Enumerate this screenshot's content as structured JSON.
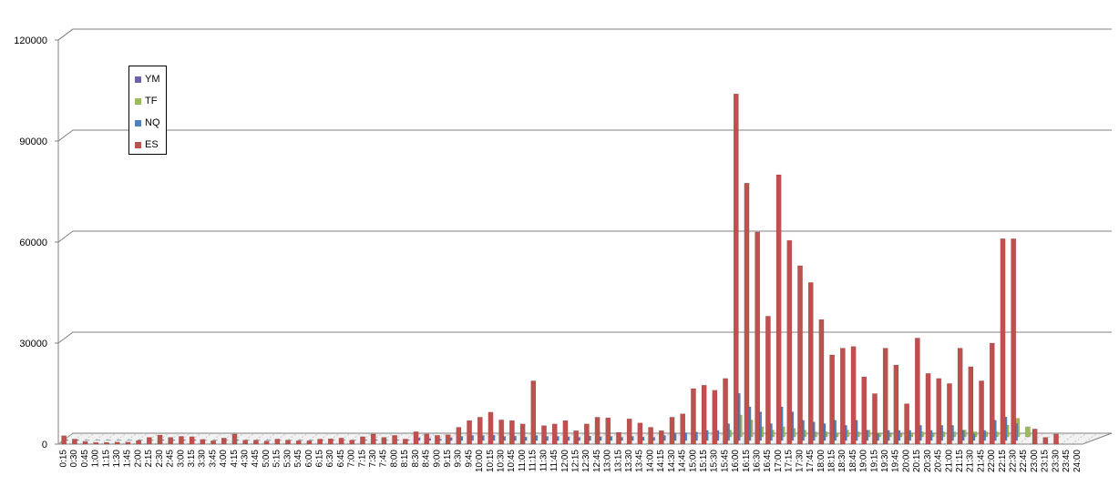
{
  "chart_data": {
    "type": "bar",
    "title": "",
    "xlabel": "",
    "ylabel": "",
    "ylim": [
      0,
      120000
    ],
    "yticks": [
      0,
      30000,
      60000,
      90000,
      120000
    ],
    "grid": true,
    "legend_position": "top-left",
    "categories": [
      "0:15",
      "0:30",
      "0:45",
      "1:00",
      "1:15",
      "1:30",
      "1:45",
      "2:00",
      "2:15",
      "2:30",
      "2:45",
      "3:00",
      "3:15",
      "3:30",
      "3:45",
      "4:00",
      "4:15",
      "4:30",
      "4:45",
      "5:00",
      "5:15",
      "5:30",
      "5:45",
      "6:00",
      "6:15",
      "6:30",
      "6:45",
      "7:00",
      "7:15",
      "7:30",
      "7:45",
      "8:00",
      "8:15",
      "8:30",
      "8:45",
      "9:00",
      "9:15",
      "9:30",
      "9:45",
      "10:00",
      "10:15",
      "10:30",
      "10:45",
      "11:00",
      "11:15",
      "11:30",
      "11:45",
      "12:00",
      "12:15",
      "12:30",
      "12:45",
      "13:00",
      "13:15",
      "13:30",
      "13:45",
      "14:00",
      "14:15",
      "14:30",
      "14:45",
      "15:00",
      "15:15",
      "15:30",
      "15:45",
      "16:00",
      "16:15",
      "16:30",
      "16:45",
      "17:00",
      "17:15",
      "17:30",
      "17:45",
      "18:00",
      "18:15",
      "18:30",
      "18:45",
      "19:00",
      "19:15",
      "19:30",
      "19:45",
      "20:00",
      "20:15",
      "20:30",
      "20:45",
      "21:00",
      "21:15",
      "21:30",
      "21:45",
      "22:00",
      "22:15",
      "22:30",
      "22:45",
      "23:00",
      "23:15",
      "23:30",
      "23:45",
      "24:00"
    ],
    "series": [
      {
        "name": "YM",
        "color": "#7060A8",
        "values": [
          0,
          0,
          0,
          0,
          0,
          0,
          0,
          0,
          0,
          0,
          0,
          0,
          0,
          0,
          0,
          0,
          0,
          0,
          0,
          0,
          0,
          0,
          0,
          0,
          0,
          0,
          0,
          0,
          0,
          0,
          0,
          0,
          0,
          0,
          0,
          0,
          0,
          0,
          0,
          0,
          0,
          0,
          0,
          0,
          0,
          0,
          0,
          0,
          0,
          0,
          0,
          0,
          0,
          0,
          0,
          0,
          0,
          0,
          0,
          0,
          0,
          0,
          0,
          0,
          0,
          0,
          0,
          0,
          0,
          0,
          0,
          0,
          0,
          0,
          0,
          0,
          0,
          0,
          0,
          0,
          0,
          0,
          0,
          0,
          0,
          0,
          0,
          0,
          0,
          0,
          0,
          0,
          0,
          0,
          0,
          0
        ]
      },
      {
        "name": "TF",
        "color": "#9BBB59",
        "values": [
          0,
          0,
          0,
          0,
          0,
          0,
          0,
          0,
          0,
          0,
          0,
          0,
          0,
          0,
          0,
          0,
          0,
          0,
          0,
          0,
          0,
          0,
          0,
          0,
          0,
          0,
          0,
          0,
          0,
          0,
          0,
          0,
          0,
          0,
          0,
          0,
          0,
          0,
          0,
          0,
          0,
          0,
          0,
          0,
          0,
          0,
          0,
          0,
          0,
          0,
          0,
          0,
          0,
          0,
          0,
          0,
          0,
          0,
          0,
          0,
          0,
          0,
          2000,
          6500,
          5000,
          3000,
          2000,
          3000,
          2500,
          2000,
          1500,
          1500,
          1200,
          2000,
          1500,
          2000,
          1200,
          1000,
          1000,
          1200,
          1500,
          1000,
          1500,
          1500,
          2000,
          1500,
          1500,
          1500,
          3500,
          5500,
          3000,
          0,
          0,
          0,
          0,
          0
        ]
      },
      {
        "name": "NQ",
        "color": "#4F81BD",
        "values": [
          200,
          200,
          100,
          100,
          100,
          100,
          100,
          100,
          100,
          200,
          200,
          200,
          200,
          100,
          100,
          100,
          200,
          100,
          100,
          100,
          100,
          100,
          100,
          100,
          100,
          100,
          100,
          100,
          200,
          200,
          100,
          200,
          200,
          800,
          600,
          400,
          800,
          1200,
          1500,
          1500,
          1600,
          1200,
          1300,
          1000,
          1500,
          1200,
          1200,
          1100,
          900,
          1300,
          1100,
          1200,
          900,
          1200,
          1000,
          900,
          1500,
          2000,
          2300,
          2500,
          3000,
          3000,
          5000,
          14000,
          10000,
          8500,
          5000,
          10000,
          8500,
          6000,
          5500,
          5000,
          6000,
          4500,
          6000,
          3000,
          2000,
          3000,
          3000,
          3000,
          4500,
          3000,
          4500,
          4500,
          3000,
          2000,
          3000,
          6000,
          7000,
          5000,
          0,
          0,
          0,
          0,
          0,
          0
        ]
      },
      {
        "name": "ES",
        "color": "#C0504D",
        "values": [
          2500,
          1500,
          800,
          500,
          500,
          600,
          600,
          1100,
          2000,
          2700,
          2000,
          2300,
          2200,
          1400,
          1000,
          1800,
          3000,
          1200,
          1200,
          900,
          1500,
          1200,
          1000,
          1000,
          1500,
          1600,
          1800,
          1200,
          2200,
          3000,
          2000,
          2600,
          1500,
          3700,
          3000,
          2600,
          2800,
          5000,
          7000,
          8000,
          9500,
          7200,
          7000,
          6000,
          18800,
          5500,
          6000,
          7000,
          4000,
          6000,
          8000,
          7800,
          3500,
          7500,
          6300,
          5000,
          4000,
          8000,
          9000,
          16500,
          17500,
          16000,
          19500,
          104000,
          77500,
          63000,
          38000,
          80000,
          60500,
          53000,
          48000,
          37000,
          26500,
          28500,
          29000,
          20000,
          15000,
          28500,
          23500,
          12000,
          31500,
          21000,
          19500,
          18000,
          28500,
          23000,
          18800,
          30000,
          61000,
          61000,
          0,
          4500,
          2000,
          3000,
          0,
          0
        ]
      }
    ]
  }
}
